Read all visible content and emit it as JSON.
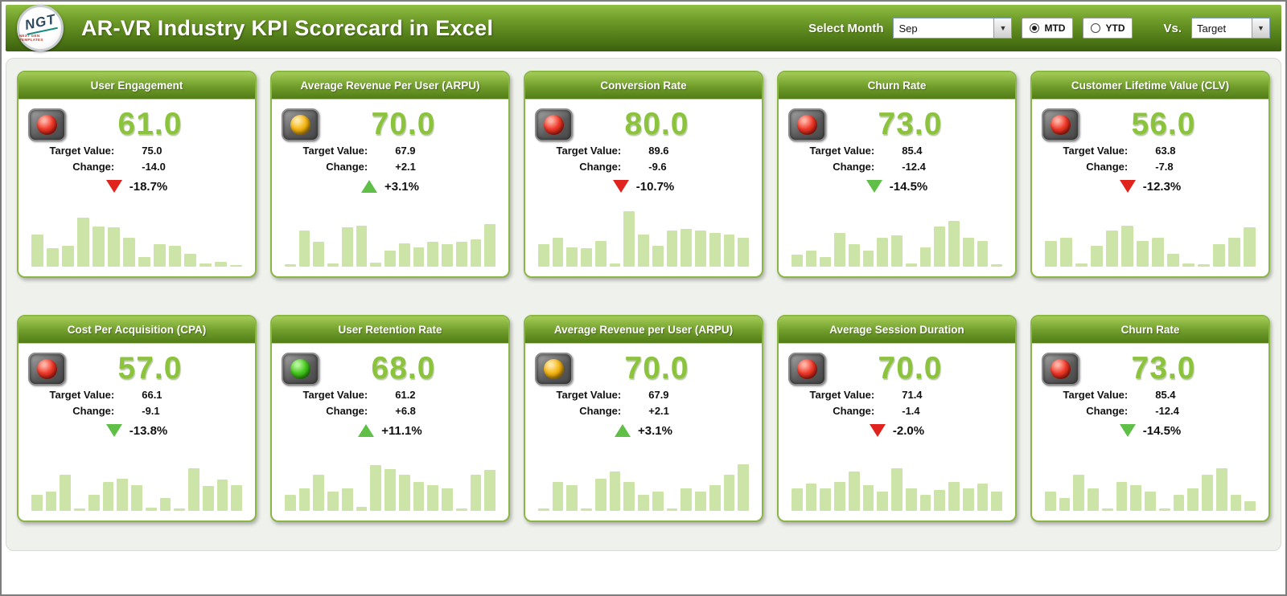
{
  "colors": {
    "header_green": "#6d9a28",
    "card_border_green": "#8ab744",
    "value_green": "#8bc43c",
    "bar_green": "#cde4a8",
    "arrow_red": "#e0231c",
    "arrow_green": "#5fbf47"
  },
  "header": {
    "logo_text": "NGT",
    "logo_subtext": "NEXT GEN TEMPLATES",
    "title": "AR-VR Industry KPI Scorecard in Excel",
    "select_month_label": "Select Month",
    "month_value": "Sep",
    "mtd_label": "MTD",
    "ytd_label": "YTD",
    "selected_period": "MTD",
    "vs_label": "Vs.",
    "vs_value": "Target"
  },
  "cards": [
    {
      "title": "User Engagement",
      "status": "red",
      "value": "61.0",
      "target_label": "Target Value:",
      "target": "75.0",
      "change_label": "Change:",
      "change": "-14.0",
      "trend": {
        "direction": "down",
        "color": "red",
        "percent": "-18.7%"
      }
    },
    {
      "title": "Average Revenue Per User (ARPU)",
      "status": "yellow",
      "value": "70.0",
      "target_label": "Target Value:",
      "target": "67.9",
      "change_label": "Change:",
      "change": "+2.1",
      "trend": {
        "direction": "up",
        "color": "green",
        "percent": "+3.1%"
      }
    },
    {
      "title": "Conversion Rate",
      "status": "red",
      "value": "80.0",
      "target_label": "Target Value:",
      "target": "89.6",
      "change_label": "Change:",
      "change": "-9.6",
      "trend": {
        "direction": "down",
        "color": "red",
        "percent": "-10.7%"
      }
    },
    {
      "title": "Churn Rate",
      "status": "red",
      "value": "73.0",
      "target_label": "Target Value:",
      "target": "85.4",
      "change_label": "Change:",
      "change": "-12.4",
      "trend": {
        "direction": "down",
        "color": "green",
        "percent": "-14.5%"
      }
    },
    {
      "title": "Customer Lifetime Value (CLV)",
      "status": "red",
      "value": "56.0",
      "target_label": "Target Value:",
      "target": "63.8",
      "change_label": "Change:",
      "change": "-7.8",
      "trend": {
        "direction": "down",
        "color": "red",
        "percent": "-12.3%"
      }
    },
    {
      "title": "Cost Per Acquisition (CPA)",
      "status": "red",
      "value": "57.0",
      "target_label": "Target Value:",
      "target": "66.1",
      "change_label": "Change:",
      "change": "-9.1",
      "trend": {
        "direction": "down",
        "color": "green",
        "percent": "-13.8%"
      }
    },
    {
      "title": "User Retention Rate",
      "status": "green",
      "value": "68.0",
      "target_label": "Target Value:",
      "target": "61.2",
      "change_label": "Change:",
      "change": "+6.8",
      "trend": {
        "direction": "up",
        "color": "green",
        "percent": "+11.1%"
      }
    },
    {
      "title": "Average Revenue per User (ARPU)",
      "status": "yellow",
      "value": "70.0",
      "target_label": "Target Value:",
      "target": "67.9",
      "change_label": "Change:",
      "change": "+2.1",
      "trend": {
        "direction": "up",
        "color": "green",
        "percent": "+3.1%"
      }
    },
    {
      "title": "Average Session Duration",
      "status": "red",
      "value": "70.0",
      "target_label": "Target Value:",
      "target": "71.4",
      "change_label": "Change:",
      "change": "-1.4",
      "trend": {
        "direction": "down",
        "color": "red",
        "percent": "-2.0%"
      }
    },
    {
      "title": "Churn Rate",
      "status": "red",
      "value": "73.0",
      "target_label": "Target Value:",
      "target": "85.4",
      "change_label": "Change:",
      "change": "-12.4",
      "trend": {
        "direction": "down",
        "color": "green",
        "percent": "-14.5%"
      }
    }
  ],
  "chart_data": [
    {
      "type": "bar",
      "title": "User Engagement sparkline",
      "values": [
        50,
        28,
        32,
        75,
        62,
        60,
        45,
        15,
        35,
        32,
        20,
        5,
        8,
        3
      ]
    },
    {
      "type": "bar",
      "title": "ARPU sparkline",
      "values": [
        4,
        55,
        38,
        5,
        60,
        63,
        6,
        25,
        36,
        30,
        38,
        34,
        38,
        42,
        66
      ]
    },
    {
      "type": "bar",
      "title": "Conversion Rate sparkline",
      "values": [
        35,
        45,
        30,
        28,
        40,
        5,
        85,
        50,
        32,
        55,
        58,
        55,
        52,
        50,
        45
      ]
    },
    {
      "type": "bar",
      "title": "Churn Rate sparkline",
      "values": [
        18,
        25,
        15,
        52,
        35,
        25,
        45,
        48,
        5,
        30,
        62,
        70,
        45,
        40,
        4
      ]
    },
    {
      "type": "bar",
      "title": "CLV sparkline",
      "values": [
        40,
        45,
        5,
        32,
        55,
        63,
        40,
        44,
        20,
        5,
        4,
        35,
        45,
        60
      ]
    },
    {
      "type": "bar",
      "title": "CPA sparkline",
      "values": [
        25,
        30,
        55,
        4,
        25,
        45,
        50,
        40,
        5,
        20,
        4,
        65,
        38,
        48,
        40
      ]
    },
    {
      "type": "bar",
      "title": "User Retention Rate sparkline",
      "values": [
        25,
        35,
        55,
        30,
        35,
        6,
        70,
        64,
        55,
        45,
        40,
        35,
        4,
        55,
        63
      ]
    },
    {
      "type": "bar",
      "title": "ARPU 2 sparkline",
      "values": [
        4,
        45,
        40,
        4,
        50,
        60,
        45,
        25,
        30,
        4,
        35,
        30,
        40,
        55,
        72
      ]
    },
    {
      "type": "bar",
      "title": "Average Session Duration sparkline",
      "values": [
        35,
        42,
        35,
        45,
        60,
        40,
        30,
        65,
        35,
        25,
        32,
        45,
        35,
        42,
        30
      ]
    },
    {
      "type": "bar",
      "title": "Churn Rate 2 sparkline",
      "values": [
        30,
        20,
        55,
        35,
        4,
        45,
        40,
        30,
        4,
        25,
        35,
        55,
        65,
        25,
        15
      ]
    }
  ]
}
